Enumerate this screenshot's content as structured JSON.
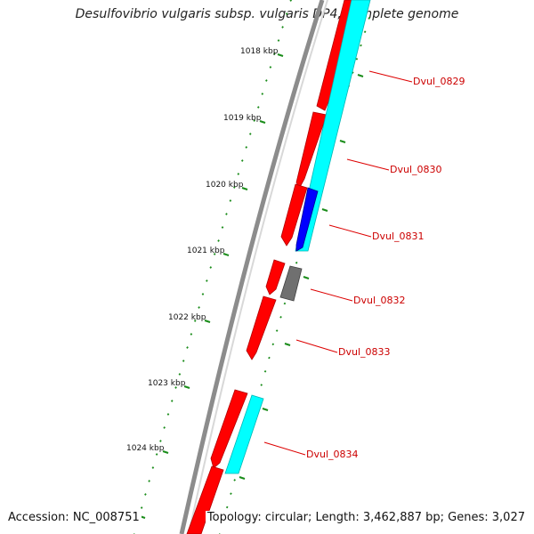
{
  "title": "Desulfovibrio vulgaris subsp. vulgaris DP4, complete genome",
  "ruler_labels": [
    "1018 kbp",
    "1019 kbp",
    "1020 kbp",
    "1021 kbp",
    "1022 kbp",
    "1023 kbp",
    "1024 kbp"
  ],
  "gene_labels": [
    "Dvul_0829",
    "Dvul_0830",
    "Dvul_0831",
    "Dvul_0832",
    "Dvul_0833",
    "Dvul_0834"
  ],
  "footer": {
    "accession": "Accession: NC_008751",
    "topology": "Topology: circular; Length: 3,462,887 bp; Genes: 3,027"
  },
  "colors": {
    "forward_cds": "#ff0000",
    "reverse_cds": "#00ffff",
    "blue_feature": "#0000ff",
    "gray_feature": "#707070",
    "backbone": "#8c8c8c",
    "ticks": "#1a8c1a",
    "label_text": "#cc0000"
  }
}
